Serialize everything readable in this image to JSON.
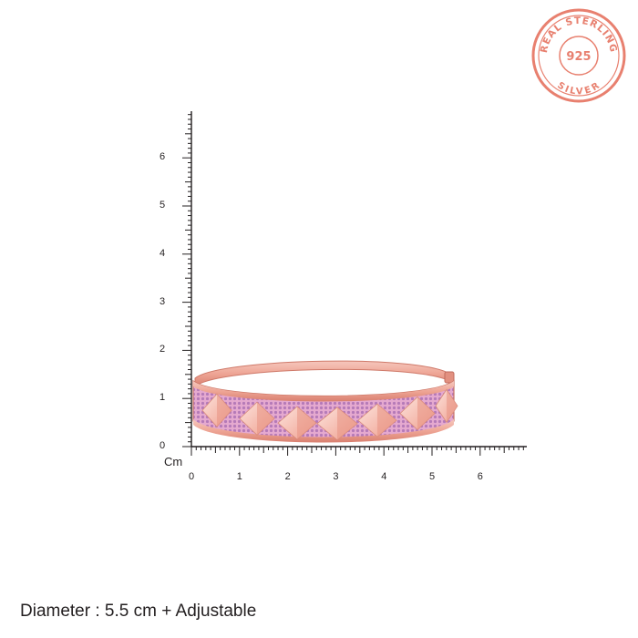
{
  "badge": {
    "top_text": "REAL STERLING",
    "center_text": "925",
    "bottom_text": "SILVER",
    "color": "#e8806f"
  },
  "ruler": {
    "unit": "Cm",
    "x_labels": [
      "0",
      "1",
      "2",
      "3",
      "4",
      "5",
      "6"
    ],
    "y_labels": [
      "0",
      "1",
      "2",
      "3",
      "4",
      "5",
      "6"
    ],
    "color": "#231f20"
  },
  "product": {
    "metal_color": "#f2b3a7",
    "stone_color": "#c98fc4"
  },
  "caption": {
    "text": "Diameter : 5.5 cm + Adjustable"
  }
}
